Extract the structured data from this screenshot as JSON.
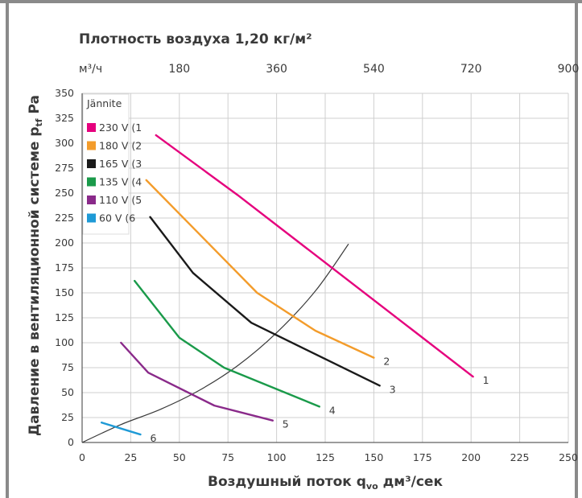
{
  "chart_data": {
    "type": "line",
    "density_label": "Плотность воздуха 1,20 кг/м²",
    "xlabel": "Воздушный поток q",
    "xlabel_sub": "vo",
    "xlabel_suffix": " дм³/сек",
    "ylabel": "Давление в вентиляционной системе p",
    "ylabel_sub": "tf",
    "ylabel_suffix": " Pa",
    "xlim": [
      0,
      250
    ],
    "ylim": [
      0,
      350
    ],
    "x_ticks": [
      "0",
      "25",
      "50",
      "75",
      "100",
      "125",
      "150",
      "175",
      "200",
      "225",
      "250"
    ],
    "y_ticks": [
      "0",
      "25",
      "50",
      "75",
      "100",
      "125",
      "150",
      "175",
      "200",
      "225",
      "250",
      "275",
      "300",
      "325",
      "350"
    ],
    "top_axis_unit": "м³/ч",
    "top_ticks": [
      "180",
      "360",
      "540",
      "720",
      "900"
    ],
    "grid": true,
    "legend_title": "Jännite",
    "legend_position": "top-left",
    "series": [
      {
        "name": "230 V  (1",
        "label": "1",
        "color": "#e5007d",
        "x": [
          38,
          80,
          201
        ],
        "y": [
          308,
          248,
          66
        ]
      },
      {
        "name": "180 V  (2",
        "label": "2",
        "color": "#f39c2b",
        "x": [
          33,
          90,
          120,
          150
        ],
        "y": [
          263,
          150,
          112,
          85
        ]
      },
      {
        "name": "165 V  (3",
        "label": "3",
        "color": "#1a1a1a",
        "x": [
          35,
          57,
          87,
          153
        ],
        "y": [
          226,
          170,
          120,
          57
        ]
      },
      {
        "name": "135 V  (4",
        "label": "4",
        "color": "#1a9a4a",
        "x": [
          27,
          50,
          73,
          122
        ],
        "y": [
          162,
          105,
          75,
          36
        ]
      },
      {
        "name": "110 V  (5",
        "label": "5",
        "color": "#8a2a8a",
        "x": [
          20,
          34,
          68,
          98
        ],
        "y": [
          100,
          70,
          37,
          22
        ]
      },
      {
        "name": "60 V  (6",
        "label": "6",
        "color": "#1e9ad6",
        "x": [
          10,
          30
        ],
        "y": [
          20,
          8
        ]
      }
    ],
    "system_curve": {
      "x": [
        0,
        20,
        40,
        60,
        80,
        100,
        120,
        137
      ],
      "y": [
        0,
        18,
        33,
        52,
        77,
        110,
        152,
        199
      ]
    }
  }
}
